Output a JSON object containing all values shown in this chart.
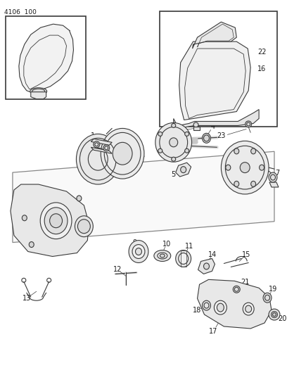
{
  "title": "4106  100",
  "bg_color": "#ffffff",
  "line_color": "#3a3a3a",
  "text_color": "#1a1a1a",
  "fig_width": 4.08,
  "fig_height": 5.33,
  "dpi": 100,
  "lw": 0.8
}
